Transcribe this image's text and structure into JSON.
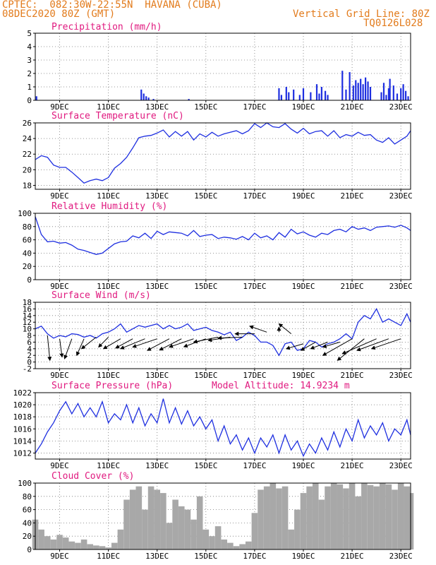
{
  "header": {
    "line1": "CPTEC:  082:30W-22:55N  HAVANA (CUBA)",
    "line2": "08DEC2020 80Z (GMT)",
    "grid_note": "Vertical Grid Line: 80Z",
    "code": "TQ0126L028"
  },
  "colors": {
    "header": "#e27b1c",
    "title": "#e0197f",
    "series": "#1e2fe0",
    "cloud": "#a8a8a8",
    "wind": "#000000"
  },
  "x_axis": {
    "domain": [
      0,
      15.4
    ],
    "ticks": [
      1,
      3,
      5,
      7,
      9,
      11,
      13,
      15
    ],
    "tick_labels": [
      "9DEC",
      "11DEC",
      "13DEC",
      "15DEC",
      "17DEC",
      "19DEC",
      "21DEC",
      "23DEC"
    ]
  },
  "chart_data": [
    {
      "id": "precip",
      "type": "bar",
      "title": "Precipitation (mm/h)",
      "ylabel": "mm/h",
      "ylim": [
        0,
        5
      ],
      "yticks": [
        0,
        1,
        2,
        3,
        4,
        5
      ],
      "x": [
        0.05,
        4.35,
        4.45,
        4.55,
        4.65,
        4.85,
        6.3,
        10.0,
        10.1,
        10.3,
        10.4,
        10.6,
        10.85,
        11.0,
        11.3,
        11.55,
        11.65,
        11.75,
        11.9,
        12.0,
        12.6,
        12.75,
        12.9,
        13.05,
        13.15,
        13.25,
        13.35,
        13.45,
        13.55,
        13.65,
        13.75,
        14.2,
        14.3,
        14.4,
        14.5,
        14.55,
        14.7,
        14.85,
        15.0,
        15.1,
        15.2,
        15.3
      ],
      "values": [
        0.3,
        0.8,
        0.5,
        0.3,
        0.2,
        0.1,
        0.1,
        0.9,
        0.4,
        1.0,
        0.6,
        0.8,
        0.4,
        0.9,
        0.6,
        1.2,
        0.5,
        1.0,
        0.7,
        0.4,
        2.2,
        0.8,
        2.1,
        1.1,
        1.5,
        1.3,
        1.6,
        1.2,
        1.7,
        1.4,
        1.0,
        0.6,
        1.3,
        0.4,
        0.9,
        1.6,
        1.1,
        0.5,
        0.9,
        1.2,
        0.7,
        0.3
      ]
    },
    {
      "id": "temp",
      "type": "line",
      "title": "Surface Temperature (nC)",
      "ylabel": "nC",
      "ylim": [
        17.5,
        26
      ],
      "yticks": [
        18,
        20,
        22,
        24,
        26
      ],
      "x": [
        0,
        0.25,
        0.5,
        0.75,
        1,
        1.25,
        1.5,
        1.75,
        2,
        2.25,
        2.5,
        2.75,
        3,
        3.25,
        3.5,
        3.75,
        4,
        4.25,
        4.5,
        4.75,
        5,
        5.25,
        5.5,
        5.75,
        6,
        6.25,
        6.5,
        6.75,
        7,
        7.25,
        7.5,
        7.75,
        8,
        8.25,
        8.5,
        8.75,
        9,
        9.25,
        9.5,
        9.75,
        10,
        10.25,
        10.5,
        10.75,
        11,
        11.25,
        11.5,
        11.75,
        12,
        12.25,
        12.5,
        12.75,
        13,
        13.25,
        13.5,
        13.75,
        14,
        14.25,
        14.5,
        14.75,
        15,
        15.25,
        15.4
      ],
      "values": [
        21.3,
        21.8,
        21.6,
        20.6,
        20.3,
        20.3,
        19.7,
        19.0,
        18.3,
        18.6,
        18.8,
        18.6,
        19.0,
        20.2,
        20.8,
        21.6,
        22.8,
        24.1,
        24.3,
        24.4,
        24.7,
        25.1,
        24.2,
        24.9,
        24.3,
        24.9,
        23.8,
        24.6,
        24.2,
        24.8,
        24.3,
        24.6,
        24.8,
        25.0,
        24.6,
        25.0,
        25.9,
        25.4,
        26.0,
        25.5,
        25.4,
        25.9,
        25.2,
        24.7,
        25.3,
        24.6,
        24.9,
        25.0,
        24.3,
        25.0,
        24.1,
        24.5,
        24.3,
        24.8,
        24.4,
        24.5,
        23.8,
        23.5,
        24.1,
        23.3,
        23.8,
        24.3,
        25.0
      ]
    },
    {
      "id": "rh",
      "type": "line",
      "title": "Relative Humidity (%)",
      "ylabel": "%",
      "ylim": [
        0,
        100
      ],
      "yticks": [
        0,
        20,
        40,
        60,
        80,
        100
      ],
      "x": [
        0,
        0.25,
        0.5,
        0.75,
        1,
        1.25,
        1.5,
        1.75,
        2,
        2.25,
        2.5,
        2.75,
        3,
        3.25,
        3.5,
        3.75,
        4,
        4.25,
        4.5,
        4.75,
        5,
        5.25,
        5.5,
        5.75,
        6,
        6.25,
        6.5,
        6.75,
        7,
        7.25,
        7.5,
        7.75,
        8,
        8.25,
        8.5,
        8.75,
        9,
        9.25,
        9.5,
        9.75,
        10,
        10.25,
        10.5,
        10.75,
        11,
        11.25,
        11.5,
        11.75,
        12,
        12.25,
        12.5,
        12.75,
        13,
        13.25,
        13.5,
        13.75,
        14,
        14.25,
        14.5,
        14.75,
        15,
        15.25,
        15.4
      ],
      "values": [
        95,
        68,
        57,
        58,
        55,
        56,
        52,
        46,
        44,
        41,
        38,
        40,
        47,
        54,
        57,
        58,
        66,
        63,
        70,
        62,
        73,
        68,
        72,
        71,
        70,
        66,
        74,
        65,
        67,
        68,
        62,
        64,
        63,
        61,
        65,
        60,
        70,
        63,
        66,
        60,
        71,
        64,
        76,
        69,
        72,
        67,
        64,
        70,
        68,
        74,
        76,
        72,
        80,
        76,
        78,
        74,
        79,
        80,
        81,
        79,
        82,
        78,
        74
      ]
    },
    {
      "id": "wind",
      "type": "line",
      "title": "Surface Wind (m/s)",
      "ylabel": "m/s",
      "ylim": [
        -2,
        18
      ],
      "yticks": [
        -2,
        0,
        2,
        4,
        6,
        8,
        10,
        12,
        14,
        16,
        18
      ],
      "x": [
        0,
        0.25,
        0.5,
        0.75,
        1,
        1.25,
        1.5,
        1.75,
        2,
        2.25,
        2.5,
        2.75,
        3,
        3.25,
        3.5,
        3.75,
        4,
        4.25,
        4.5,
        4.75,
        5,
        5.25,
        5.5,
        5.75,
        6,
        6.25,
        6.5,
        6.75,
        7,
        7.25,
        7.5,
        7.75,
        8,
        8.25,
        8.5,
        8.75,
        9,
        9.25,
        9.5,
        9.75,
        10,
        10.25,
        10.5,
        10.75,
        11,
        11.25,
        11.5,
        11.75,
        12,
        12.25,
        12.5,
        12.75,
        13,
        13.25,
        13.5,
        13.75,
        14,
        14.25,
        14.5,
        14.75,
        15,
        15.25,
        15.4
      ],
      "values": [
        10.0,
        10.8,
        8.5,
        7.2,
        8.0,
        7.6,
        8.5,
        8.3,
        7.5,
        8.0,
        7.2,
        8.5,
        9.0,
        10.0,
        11.5,
        9.0,
        10.0,
        11.0,
        10.5,
        11.0,
        11.5,
        10.0,
        11.0,
        10.0,
        10.5,
        11.5,
        9.5,
        10.0,
        10.5,
        9.5,
        9.0,
        8.2,
        9.0,
        6.5,
        7.5,
        9.0,
        8.0,
        6.0,
        6.0,
        5.0,
        2.0,
        5.5,
        6.0,
        3.5,
        4.0,
        6.5,
        6.0,
        4.5,
        5.5,
        6.0,
        7.0,
        8.5,
        7.0,
        12.0,
        14.0,
        13.0,
        16.0,
        12.0,
        13.0,
        12.0,
        11.0,
        14.5,
        12.0
      ]
    },
    {
      "id": "pres",
      "type": "line",
      "title": "Surface Pressure (hPa)",
      "ylabel": "hPa",
      "note": "Model Altitude: 14.9234 m",
      "ylim": [
        1011,
        1022
      ],
      "yticks": [
        1012,
        1014,
        1016,
        1018,
        1020,
        1022
      ],
      "x": [
        0,
        0.25,
        0.5,
        0.75,
        1,
        1.25,
        1.5,
        1.75,
        2,
        2.25,
        2.5,
        2.75,
        3,
        3.25,
        3.5,
        3.75,
        4,
        4.25,
        4.5,
        4.75,
        5,
        5.25,
        5.5,
        5.75,
        6,
        6.25,
        6.5,
        6.75,
        7,
        7.25,
        7.5,
        7.75,
        8,
        8.25,
        8.5,
        8.75,
        9,
        9.25,
        9.5,
        9.75,
        10,
        10.25,
        10.5,
        10.75,
        11,
        11.25,
        11.5,
        11.75,
        12,
        12.25,
        12.5,
        12.75,
        13,
        13.25,
        13.5,
        13.75,
        14,
        14.25,
        14.5,
        14.75,
        15,
        15.25,
        15.4
      ],
      "values": [
        1012.0,
        1013.5,
        1015.5,
        1017.0,
        1019.0,
        1020.5,
        1018.5,
        1020.2,
        1018.0,
        1019.5,
        1018.0,
        1020.5,
        1017.0,
        1018.5,
        1017.5,
        1020.0,
        1017.0,
        1019.5,
        1016.5,
        1018.5,
        1017.0,
        1021.0,
        1017.0,
        1019.5,
        1016.8,
        1019.0,
        1016.5,
        1018.0,
        1016.0,
        1017.5,
        1014.0,
        1016.5,
        1013.5,
        1015.0,
        1012.5,
        1014.5,
        1012.0,
        1014.5,
        1013.0,
        1015.0,
        1012.0,
        1015.0,
        1012.5,
        1014.0,
        1011.5,
        1013.5,
        1012.0,
        1014.5,
        1012.5,
        1015.5,
        1013.0,
        1016.0,
        1014.0,
        1017.5,
        1014.5,
        1016.5,
        1015.0,
        1017.0,
        1014.0,
        1016.0,
        1015.0,
        1017.5,
        1015.0
      ]
    },
    {
      "id": "cloud",
      "type": "bar",
      "title": "Cloud Cover (%)",
      "ylabel": "%",
      "ylim": [
        0,
        100
      ],
      "yticks": [
        0,
        20,
        40,
        60,
        80,
        100
      ],
      "x": [
        0,
        0.25,
        0.5,
        0.75,
        1,
        1.25,
        1.5,
        1.75,
        2,
        2.25,
        2.5,
        2.75,
        3,
        3.25,
        3.5,
        3.75,
        4,
        4.25,
        4.5,
        4.75,
        5,
        5.25,
        5.5,
        5.75,
        6,
        6.25,
        6.5,
        6.75,
        7,
        7.25,
        7.5,
        7.75,
        8,
        8.25,
        8.5,
        8.75,
        9,
        9.25,
        9.5,
        9.75,
        10,
        10.25,
        10.5,
        10.75,
        11,
        11.25,
        11.5,
        11.75,
        12,
        12.25,
        12.5,
        12.75,
        13,
        13.25,
        13.5,
        13.75,
        14,
        14.25,
        14.5,
        14.75,
        15,
        15.25,
        15.4
      ],
      "values": [
        45,
        30,
        20,
        15,
        22,
        18,
        12,
        10,
        15,
        8,
        6,
        5,
        3,
        10,
        30,
        75,
        90,
        95,
        60,
        95,
        90,
        85,
        40,
        75,
        65,
        60,
        45,
        80,
        30,
        20,
        35,
        15,
        10,
        5,
        8,
        12,
        55,
        90,
        95,
        100,
        92,
        95,
        30,
        60,
        85,
        95,
        100,
        75,
        95,
        100,
        98,
        92,
        100,
        80,
        100,
        97,
        95,
        100,
        98,
        90,
        100,
        95,
        85
      ]
    }
  ],
  "wind_barbs": [
    {
      "day": 0.5,
      "y": 8,
      "to_day": 0.6,
      "to_y": 0.5
    },
    {
      "day": 1.0,
      "y": 7,
      "to_day": 1.1,
      "to_y": 1.5
    },
    {
      "day": 1.5,
      "y": 7,
      "to_day": 1.2,
      "to_y": 1.0
    },
    {
      "day": 2.0,
      "y": 7,
      "to_day": 1.7,
      "to_y": 2.0
    },
    {
      "day": 2.5,
      "y": 7.5,
      "to_day": 1.9,
      "to_y": 4.0
    },
    {
      "day": 3.0,
      "y": 7.5,
      "to_day": 2.6,
      "to_y": 4.5
    },
    {
      "day": 3.5,
      "y": 7,
      "to_day": 2.8,
      "to_y": 4.0
    },
    {
      "day": 4.0,
      "y": 7,
      "to_day": 3.3,
      "to_y": 4.2
    },
    {
      "day": 4.5,
      "y": 7,
      "to_day": 3.5,
      "to_y": 4.0
    },
    {
      "day": 5.0,
      "y": 7,
      "to_day": 4.0,
      "to_y": 4.5
    },
    {
      "day": 5.5,
      "y": 7,
      "to_day": 4.6,
      "to_y": 3.5
    },
    {
      "day": 6.0,
      "y": 7,
      "to_day": 5.1,
      "to_y": 3.6
    },
    {
      "day": 6.5,
      "y": 7,
      "to_day": 5.5,
      "to_y": 4.5
    },
    {
      "day": 7.0,
      "y": 7,
      "to_day": 6.1,
      "to_y": 4.6
    },
    {
      "day": 7.5,
      "y": 7.5,
      "to_day": 6.5,
      "to_y": 6.0
    },
    {
      "day": 8.0,
      "y": 7.5,
      "to_day": 7.1,
      "to_y": 6.5
    },
    {
      "day": 8.5,
      "y": 7.5,
      "to_day": 7.5,
      "to_y": 7.2
    },
    {
      "day": 9.0,
      "y": 8.5,
      "to_day": 8.2,
      "to_y": 8.5
    },
    {
      "day": 9.5,
      "y": 9.0,
      "to_day": 8.8,
      "to_y": 10.8
    },
    {
      "day": 10.0,
      "y": 9.0,
      "to_day": 10.0,
      "to_y": 10.5
    },
    {
      "day": 10.5,
      "y": 8.5,
      "to_day": 10.0,
      "to_y": 11.5
    },
    {
      "day": 11.0,
      "y": 5.5,
      "to_day": 10.3,
      "to_y": 4.0
    },
    {
      "day": 11.5,
      "y": 6.0,
      "to_day": 10.9,
      "to_y": 3.5
    },
    {
      "day": 12.0,
      "y": 6.0,
      "to_day": 11.3,
      "to_y": 4.0
    },
    {
      "day": 12.5,
      "y": 6.0,
      "to_day": 11.8,
      "to_y": 4.5
    },
    {
      "day": 13.0,
      "y": 7.0,
      "to_day": 11.8,
      "to_y": 2.0
    },
    {
      "day": 13.5,
      "y": 7.0,
      "to_day": 12.4,
      "to_y": 0.5
    },
    {
      "day": 14.0,
      "y": 7.0,
      "to_day": 12.6,
      "to_y": 2.5
    },
    {
      "day": 14.5,
      "y": 7.0,
      "to_day": 13.2,
      "to_y": 3.5
    },
    {
      "day": 15.0,
      "y": 7.0,
      "to_day": 13.8,
      "to_y": 4.0
    }
  ]
}
